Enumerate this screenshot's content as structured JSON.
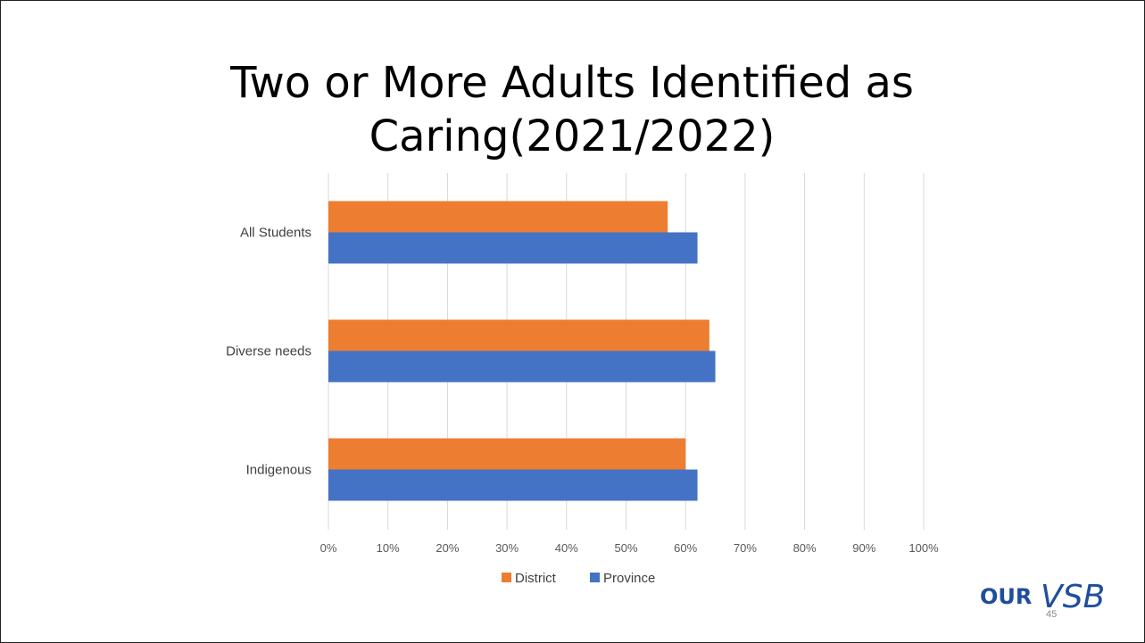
{
  "slide": {
    "title_lines": [
      "Two or More Adults Identified as",
      "Caring(2021/2022)"
    ],
    "page_number": "45",
    "logo_word": "OUR",
    "logo_mark": "VSB",
    "logo_color": "#1f4e9c"
  },
  "chart_data": {
    "type": "bar",
    "orientation": "horizontal",
    "title": "Two or More Adults Identified as Caring(2021/2022)",
    "xlabel": "",
    "ylabel": "",
    "categories": [
      "All Students",
      "Diverse needs",
      "Indigenous"
    ],
    "series": [
      {
        "name": "District",
        "color": "#ed7d31",
        "values": [
          0.57,
          0.64,
          0.6
        ]
      },
      {
        "name": "Province",
        "color": "#4472c4",
        "values": [
          0.62,
          0.65,
          0.62
        ]
      }
    ],
    "xlim": [
      0,
      1
    ],
    "ticks": [
      0,
      0.1,
      0.2,
      0.3,
      0.4,
      0.5,
      0.6,
      0.7,
      0.8,
      0.9,
      1.0
    ],
    "tick_labels": [
      "0%",
      "10%",
      "20%",
      "30%",
      "40%",
      "50%",
      "60%",
      "70%",
      "80%",
      "90%",
      "100%"
    ],
    "grid": true,
    "legend_position": "bottom"
  }
}
